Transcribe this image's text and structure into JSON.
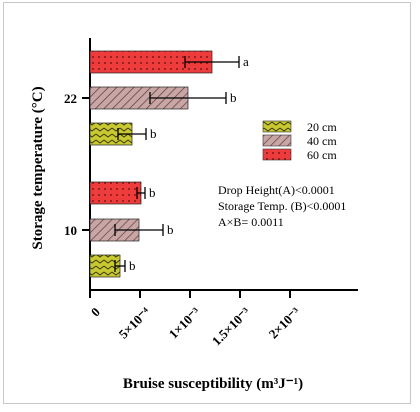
{
  "chart_data": {
    "type": "bar",
    "orientation": "horizontal",
    "title": "",
    "xlabel": "Bruise susceptibility (m³J⁻¹)",
    "ylabel": "Storage temperature (°C)",
    "xlim": [
      0,
      0.002
    ],
    "categories": [
      "10",
      "22"
    ],
    "x_ticks": [
      {
        "value": 0,
        "label": "0"
      },
      {
        "value": 0.0005,
        "label": "5×10⁻⁴"
      },
      {
        "value": 0.001,
        "label": "1×10⁻³"
      },
      {
        "value": 0.0015,
        "label": "1.5×10⁻³"
      },
      {
        "value": 0.002,
        "label": "2×10⁻³"
      }
    ],
    "series": [
      {
        "name": "20 cm",
        "color": "#c8c832",
        "pattern": "chevron",
        "values": [
          0.0003,
          0.00042
        ],
        "errors": [
          5e-05,
          0.00014
        ],
        "letters": [
          "b",
          "b"
        ]
      },
      {
        "name": "40 cm",
        "color": "#c9a6a6",
        "pattern": "diagonal",
        "values": [
          0.00049,
          0.00098
        ],
        "errors": [
          0.00024,
          0.00038
        ],
        "letters": [
          "b",
          "b"
        ]
      },
      {
        "name": "60 cm",
        "color": "#ee3b3b",
        "pattern": "dots",
        "values": [
          0.00051,
          0.00122
        ],
        "errors": [
          4e-05,
          0.00027
        ],
        "letters": [
          "b",
          "a"
        ]
      }
    ],
    "legend_position": "right",
    "annotations": [
      "Drop Height(A)<0.0001",
      "Storage Temp. (B)<0.0001",
      "A×B= 0.0011"
    ]
  }
}
